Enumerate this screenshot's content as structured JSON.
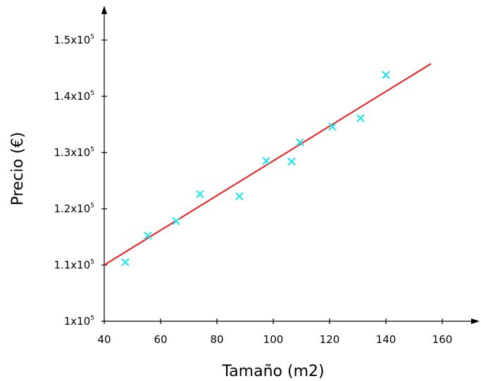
{
  "chart_data": {
    "type": "scatter",
    "title": "",
    "xlabel": "Tamaño (m2)",
    "ylabel": "Precio (€)",
    "xlim": [
      40,
      170
    ],
    "ylim": [
      100000,
      155000
    ],
    "x_ticks": [
      {
        "value": 40,
        "label": "40"
      },
      {
        "value": 60,
        "label": "60"
      },
      {
        "value": 80,
        "label": "80"
      },
      {
        "value": 100,
        "label": "100"
      },
      {
        "value": 120,
        "label": "120"
      },
      {
        "value": 140,
        "label": "140"
      },
      {
        "value": 160,
        "label": "160"
      }
    ],
    "y_ticks": [
      {
        "value": 100000,
        "mantissa": "1x10",
        "exp": "5"
      },
      {
        "value": 110000,
        "mantissa": "1.1x10",
        "exp": "5"
      },
      {
        "value": 120000,
        "mantissa": "1.2x10",
        "exp": "5"
      },
      {
        "value": 130000,
        "mantissa": "1.3x10",
        "exp": "5"
      },
      {
        "value": 140000,
        "mantissa": "1.4x10",
        "exp": "5"
      },
      {
        "value": 150000,
        "mantissa": "1.5x10",
        "exp": "5"
      }
    ],
    "grid": false,
    "series": [
      {
        "type": "scatter",
        "marker": "x",
        "color": "#22e5ee",
        "points": [
          {
            "x": 47.5,
            "y": 110500
          },
          {
            "x": 55.5,
            "y": 115200
          },
          {
            "x": 65.5,
            "y": 117800
          },
          {
            "x": 74,
            "y": 122600
          },
          {
            "x": 88,
            "y": 122200
          },
          {
            "x": 97.5,
            "y": 128500
          },
          {
            "x": 106.5,
            "y": 128400
          },
          {
            "x": 109.5,
            "y": 131800
          },
          {
            "x": 121,
            "y": 134600
          },
          {
            "x": 131,
            "y": 136100
          },
          {
            "x": 140,
            "y": 143800
          }
        ]
      },
      {
        "type": "line",
        "color": "#ee1c1c",
        "points": [
          {
            "x": 40,
            "y": 110000
          },
          {
            "x": 156,
            "y": 145800
          }
        ]
      }
    ]
  }
}
